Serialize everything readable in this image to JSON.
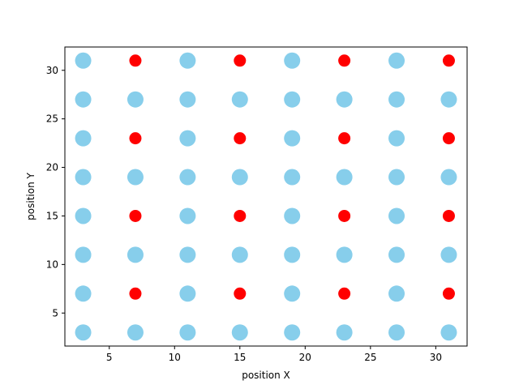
{
  "chart_data": {
    "type": "scatter",
    "title": "",
    "xlabel": "position X",
    "ylabel": "position Y",
    "xlim": [
      1.6,
      32.4
    ],
    "ylim": [
      1.6,
      32.4
    ],
    "xticks": [
      5,
      10,
      15,
      20,
      25,
      30
    ],
    "yticks": [
      5,
      10,
      15,
      20,
      25,
      30
    ],
    "grid": false,
    "colors": {
      "blue": "#87ceeb",
      "red": "#ff0000"
    },
    "series": [
      {
        "color": "#87ceeb",
        "points": [
          [
            3,
            31
          ],
          [
            11,
            31
          ],
          [
            19,
            31
          ],
          [
            27,
            31
          ],
          [
            3,
            27
          ],
          [
            7,
            27
          ],
          [
            11,
            27
          ],
          [
            15,
            27
          ],
          [
            19,
            27
          ],
          [
            23,
            27
          ],
          [
            27,
            27
          ],
          [
            31,
            27
          ],
          [
            3,
            23
          ],
          [
            11,
            23
          ],
          [
            19,
            23
          ],
          [
            27,
            23
          ],
          [
            3,
            19
          ],
          [
            7,
            19
          ],
          [
            11,
            19
          ],
          [
            15,
            19
          ],
          [
            19,
            19
          ],
          [
            23,
            19
          ],
          [
            27,
            19
          ],
          [
            31,
            19
          ],
          [
            3,
            15
          ],
          [
            11,
            15
          ],
          [
            19,
            15
          ],
          [
            27,
            15
          ],
          [
            3,
            11
          ],
          [
            7,
            11
          ],
          [
            11,
            11
          ],
          [
            15,
            11
          ],
          [
            19,
            11
          ],
          [
            23,
            11
          ],
          [
            27,
            11
          ],
          [
            31,
            11
          ],
          [
            3,
            7
          ],
          [
            11,
            7
          ],
          [
            19,
            7
          ],
          [
            27,
            7
          ],
          [
            3,
            3
          ],
          [
            7,
            3
          ],
          [
            11,
            3
          ],
          [
            15,
            3
          ],
          [
            19,
            3
          ],
          [
            23,
            3
          ],
          [
            27,
            3
          ],
          [
            31,
            3
          ]
        ]
      },
      {
        "color": "#ff0000",
        "points": [
          [
            7,
            31
          ],
          [
            15,
            31
          ],
          [
            23,
            31
          ],
          [
            31,
            31
          ],
          [
            7,
            23
          ],
          [
            15,
            23
          ],
          [
            23,
            23
          ],
          [
            31,
            23
          ],
          [
            7,
            15
          ],
          [
            15,
            15
          ],
          [
            23,
            15
          ],
          [
            31,
            15
          ],
          [
            7,
            7
          ],
          [
            15,
            7
          ],
          [
            23,
            7
          ],
          [
            31,
            7
          ]
        ]
      }
    ]
  }
}
